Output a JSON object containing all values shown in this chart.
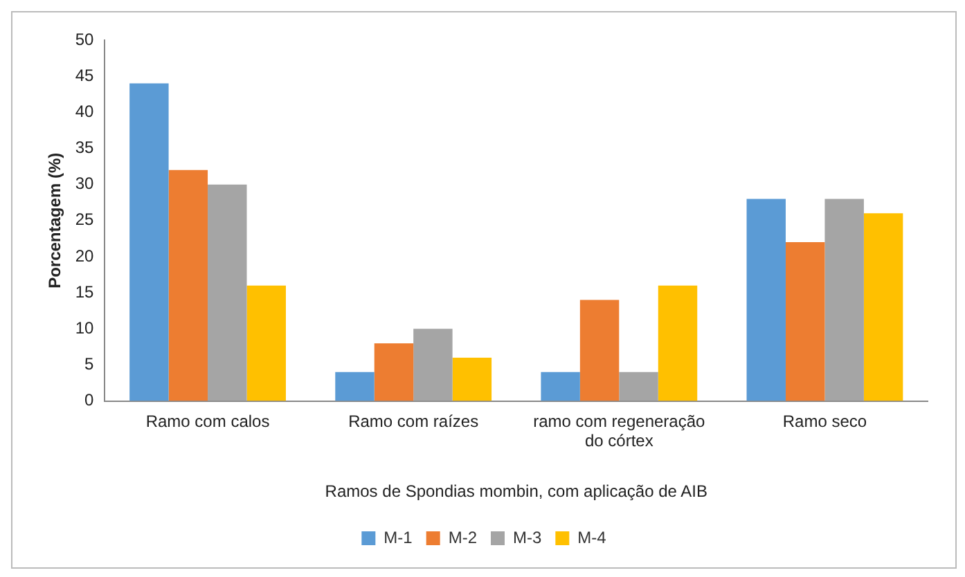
{
  "chart_data": {
    "type": "bar",
    "xlabel": "Ramos de Spondias mombin, com aplicação de AIB",
    "ylabel": "Porcentagem (%)",
    "categories": [
      "Ramo com calos",
      "Ramo com raízes",
      "ramo com regeneração do córtex",
      "Ramo seco"
    ],
    "series": [
      {
        "name": "M-1",
        "color": "#5b9bd5",
        "values": [
          44,
          4,
          4,
          28
        ]
      },
      {
        "name": "M-2",
        "color": "#ed7d31",
        "values": [
          32,
          8,
          14,
          22
        ]
      },
      {
        "name": "M-3",
        "color": "#a5a5a5",
        "values": [
          30,
          10,
          4,
          28
        ]
      },
      {
        "name": "M-4",
        "color": "#ffc000",
        "values": [
          16,
          6,
          16,
          26
        ]
      }
    ],
    "ylim": [
      0,
      50
    ],
    "yticks": [
      0,
      5,
      10,
      15,
      20,
      25,
      30,
      35,
      40,
      45,
      50
    ],
    "grid": false,
    "legend": "bottom"
  }
}
